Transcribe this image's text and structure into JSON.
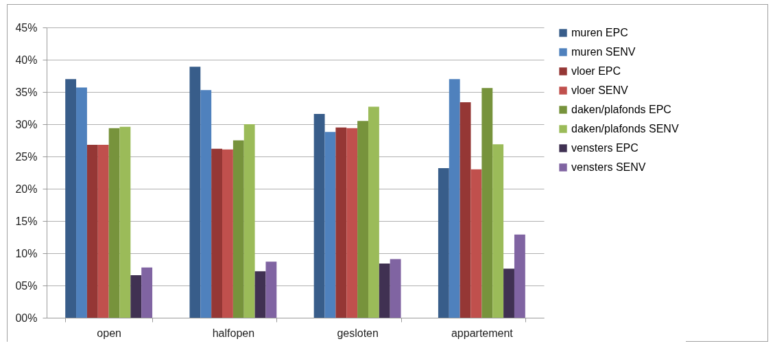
{
  "chart_data": {
    "type": "bar",
    "categories": [
      "open",
      "halfopen",
      "gesloten",
      "appartement"
    ],
    "series": [
      {
        "name": "muren EPC",
        "color": "#385d8a",
        "values": [
          37.0,
          38.9,
          31.6,
          23.2
        ]
      },
      {
        "name": "muren SENV",
        "color": "#4f81bd",
        "values": [
          35.7,
          35.3,
          28.8,
          37.0
        ]
      },
      {
        "name": "vloer EPC",
        "color": "#953735",
        "values": [
          26.8,
          26.2,
          29.5,
          33.4
        ]
      },
      {
        "name": "vloer SENV",
        "color": "#c0504d",
        "values": [
          26.8,
          26.1,
          29.4,
          23.0
        ]
      },
      {
        "name": "daken/plafonds EPC",
        "color": "#77933c",
        "values": [
          29.4,
          27.5,
          30.5,
          35.6
        ]
      },
      {
        "name": "daken/plafonds SENV",
        "color": "#9bbb59",
        "values": [
          29.6,
          30.0,
          32.7,
          26.9
        ]
      },
      {
        "name": "vensters EPC",
        "color": "#403152",
        "values": [
          6.6,
          7.2,
          8.4,
          7.6
        ]
      },
      {
        "name": "vensters SENV",
        "color": "#8064a2",
        "values": [
          7.8,
          8.7,
          9.1,
          12.9
        ]
      }
    ],
    "ylim": [
      0,
      45
    ],
    "yticks": [
      {
        "value": 0,
        "label": "00%"
      },
      {
        "value": 5,
        "label": "05%"
      },
      {
        "value": 10,
        "label": "10%"
      },
      {
        "value": 15,
        "label": "15%"
      },
      {
        "value": 20,
        "label": "20%"
      },
      {
        "value": 25,
        "label": "25%"
      },
      {
        "value": 30,
        "label": "30%"
      },
      {
        "value": 35,
        "label": "35%"
      },
      {
        "value": 40,
        "label": "40%"
      },
      {
        "value": 45,
        "label": "45%"
      }
    ],
    "grid": "y",
    "legend": "right"
  }
}
